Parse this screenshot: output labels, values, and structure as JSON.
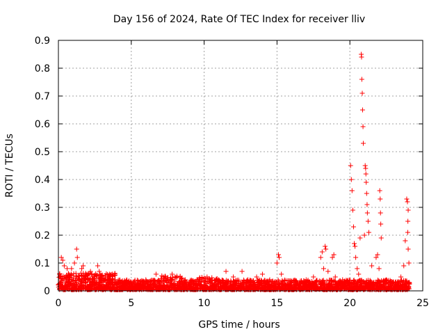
{
  "chart_data": {
    "type": "scatter",
    "title": "Day 156 of 2024, Rate Of TEC Index for receiver lliv",
    "xlabel": "GPS time / hours",
    "ylabel": "ROTI / TECUs",
    "xlim": [
      0,
      25
    ],
    "ylim": [
      0,
      0.9
    ],
    "x_ticks": [
      "0",
      "5",
      "10",
      "15",
      "20",
      "25"
    ],
    "y_ticks": [
      "0",
      "0.1",
      "0.2",
      "0.3",
      "0.4",
      "0.5",
      "0.6",
      "0.7",
      "0.8",
      "0.9"
    ],
    "grid": true,
    "marker": "+",
    "color": "#ff0000",
    "series": [
      {
        "points": [
          [
            0.2,
            0.12
          ],
          [
            0.3,
            0.11
          ],
          [
            0.4,
            0.09
          ],
          [
            0.6,
            0.08
          ],
          [
            0.9,
            0.08
          ],
          [
            1.1,
            0.1
          ],
          [
            1.25,
            0.15
          ],
          [
            1.3,
            0.12
          ],
          [
            1.6,
            0.08
          ],
          [
            1.7,
            0.09
          ],
          [
            2.0,
            0.06
          ],
          [
            2.2,
            0.07
          ],
          [
            2.7,
            0.09
          ],
          [
            2.8,
            0.07
          ],
          [
            3.5,
            0.06
          ],
          [
            3.9,
            0.04
          ],
          [
            4.5,
            0.03
          ],
          [
            5.2,
            0.03
          ],
          [
            6.0,
            0.04
          ],
          [
            6.7,
            0.06
          ],
          [
            7.2,
            0.04
          ],
          [
            7.8,
            0.06
          ],
          [
            8.0,
            0.05
          ],
          [
            8.7,
            0.04
          ],
          [
            9.5,
            0.04
          ],
          [
            10.2,
            0.05
          ],
          [
            10.8,
            0.04
          ],
          [
            11.5,
            0.07
          ],
          [
            12.0,
            0.05
          ],
          [
            12.6,
            0.07
          ],
          [
            13.0,
            0.04
          ],
          [
            13.6,
            0.05
          ],
          [
            14.0,
            0.06
          ],
          [
            14.5,
            0.04
          ],
          [
            15.0,
            0.1
          ],
          [
            15.1,
            0.13
          ],
          [
            15.15,
            0.12
          ],
          [
            15.3,
            0.06
          ],
          [
            16.0,
            0.03
          ],
          [
            17.0,
            0.04
          ],
          [
            17.5,
            0.05
          ],
          [
            18.0,
            0.12
          ],
          [
            18.1,
            0.14
          ],
          [
            18.2,
            0.08
          ],
          [
            18.3,
            0.16
          ],
          [
            18.35,
            0.15
          ],
          [
            18.5,
            0.07
          ],
          [
            18.8,
            0.12
          ],
          [
            18.9,
            0.13
          ],
          [
            19.0,
            0.05
          ],
          [
            19.5,
            0.04
          ],
          [
            20.05,
            0.45
          ],
          [
            20.1,
            0.4
          ],
          [
            20.15,
            0.36
          ],
          [
            20.2,
            0.29
          ],
          [
            20.25,
            0.23
          ],
          [
            20.3,
            0.17
          ],
          [
            20.35,
            0.16
          ],
          [
            20.4,
            0.12
          ],
          [
            20.5,
            0.08
          ],
          [
            20.6,
            0.06
          ],
          [
            20.7,
            0.19
          ],
          [
            20.78,
            0.85
          ],
          [
            20.8,
            0.84
          ],
          [
            20.82,
            0.76
          ],
          [
            20.85,
            0.71
          ],
          [
            20.87,
            0.65
          ],
          [
            20.9,
            0.59
          ],
          [
            20.92,
            0.53
          ],
          [
            21.0,
            0.2
          ],
          [
            21.05,
            0.45
          ],
          [
            21.08,
            0.44
          ],
          [
            21.1,
            0.42
          ],
          [
            21.12,
            0.39
          ],
          [
            21.15,
            0.35
          ],
          [
            21.18,
            0.31
          ],
          [
            21.2,
            0.28
          ],
          [
            21.25,
            0.25
          ],
          [
            21.3,
            0.21
          ],
          [
            21.5,
            0.09
          ],
          [
            21.8,
            0.12
          ],
          [
            21.9,
            0.13
          ],
          [
            22.0,
            0.08
          ],
          [
            22.05,
            0.36
          ],
          [
            22.08,
            0.33
          ],
          [
            22.1,
            0.28
          ],
          [
            22.12,
            0.24
          ],
          [
            22.15,
            0.19
          ],
          [
            22.5,
            0.04
          ],
          [
            23.0,
            0.03
          ],
          [
            23.5,
            0.05
          ],
          [
            23.7,
            0.09
          ],
          [
            23.8,
            0.18
          ],
          [
            23.9,
            0.33
          ],
          [
            23.95,
            0.32
          ],
          [
            24.0,
            0.29
          ],
          [
            23.98,
            0.25
          ],
          [
            23.97,
            0.21
          ],
          [
            24.0,
            0.15
          ],
          [
            24.05,
            0.1
          ]
        ]
      }
    ]
  }
}
